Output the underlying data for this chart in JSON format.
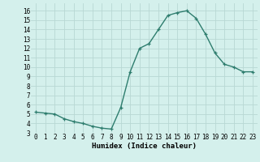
{
  "x": [
    0,
    1,
    2,
    3,
    4,
    5,
    6,
    7,
    8,
    9,
    10,
    11,
    12,
    13,
    14,
    15,
    16,
    17,
    18,
    19,
    20,
    21,
    22,
    23
  ],
  "y": [
    5.2,
    5.1,
    5.0,
    4.5,
    4.2,
    4.0,
    3.7,
    3.5,
    3.4,
    5.7,
    9.5,
    12.0,
    12.5,
    14.0,
    15.5,
    15.8,
    16.0,
    15.2,
    13.5,
    11.5,
    10.3,
    10.0,
    9.5,
    9.5
  ],
  "line_color": "#2e7d6e",
  "marker": "+",
  "marker_size": 3,
  "linewidth": 1.0,
  "xlabel": "Humidex (Indice chaleur)",
  "bg_color": "#d4f0ec",
  "grid_color": "#b8d8d4",
  "xlim": [
    -0.5,
    23.5
  ],
  "ylim": [
    3,
    16.8
  ],
  "yticks": [
    3,
    4,
    5,
    6,
    7,
    8,
    9,
    10,
    11,
    12,
    13,
    14,
    15,
    16
  ],
  "xticks": [
    0,
    1,
    2,
    3,
    4,
    5,
    6,
    7,
    8,
    9,
    10,
    11,
    12,
    13,
    14,
    15,
    16,
    17,
    18,
    19,
    20,
    21,
    22,
    23
  ],
  "tick_fontsize": 5.5,
  "xlabel_fontsize": 6.5
}
